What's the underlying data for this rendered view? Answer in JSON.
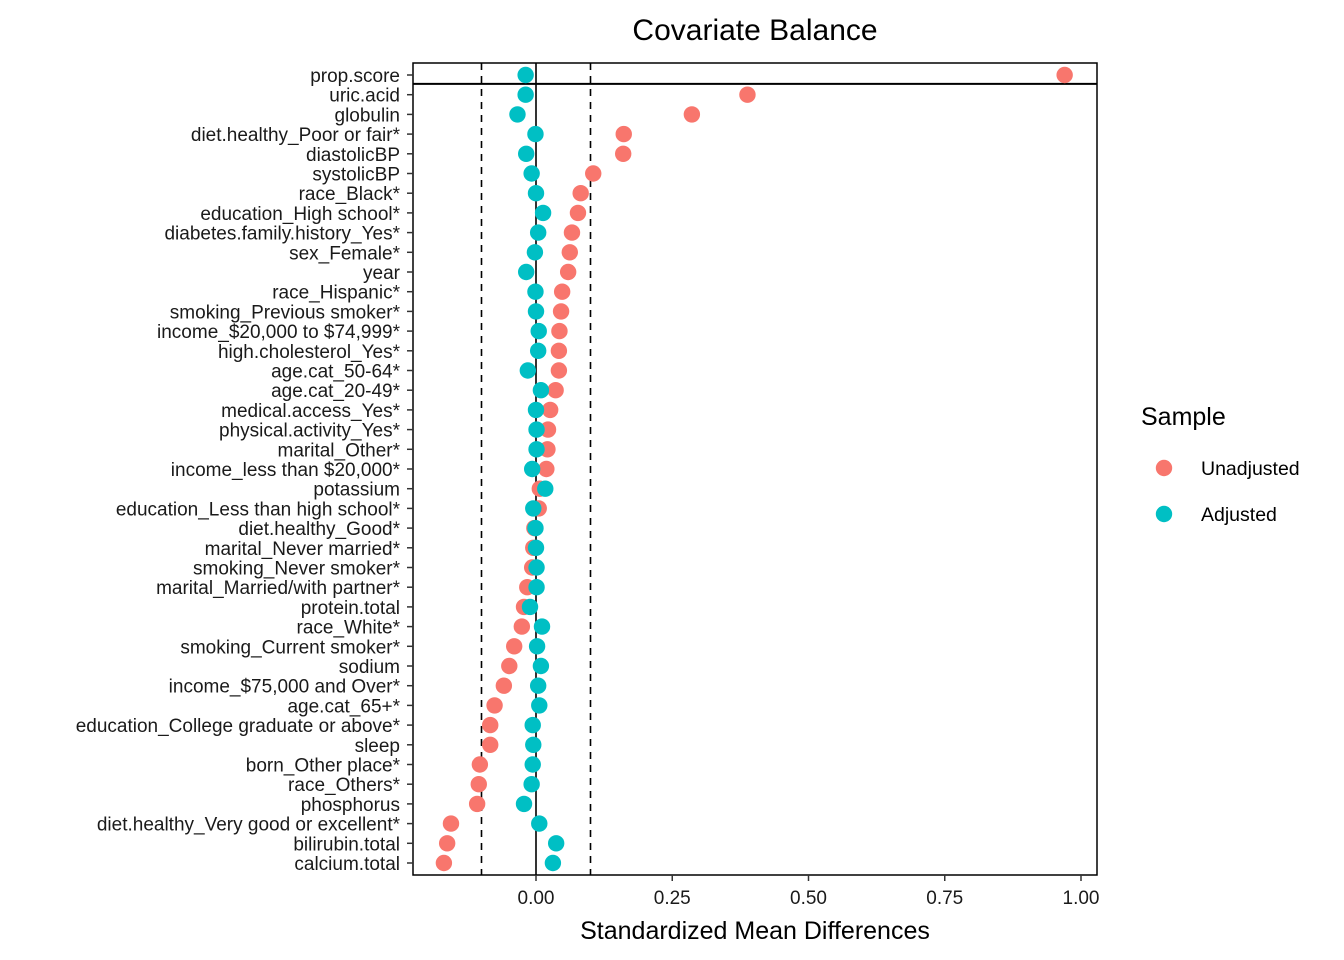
{
  "chart_data": {
    "type": "scatter",
    "title": "Covariate Balance",
    "xlabel": "Standardized Mean Differences",
    "ylabel": "",
    "xlim": [
      -0.225,
      1.025
    ],
    "xticks": [
      0.0,
      0.25,
      0.5,
      0.75,
      1.0
    ],
    "xtick_labels": [
      "0.00",
      "0.25",
      "0.50",
      "0.75",
      "1.00"
    ],
    "threshold_lines": [
      -0.1,
      0.1
    ],
    "zero_line": 0,
    "separator_below": "prop.score",
    "grid": false,
    "legend": {
      "title": "Sample",
      "placement": "right",
      "entries": [
        {
          "name": "Unadjusted",
          "color": "#F8766D"
        },
        {
          "name": "Adjusted",
          "color": "#00BFC4"
        }
      ]
    },
    "categories": [
      "prop.score",
      "uric.acid",
      "globulin",
      "diet.healthy_Poor or fair*",
      "diastolicBP",
      "systolicBP",
      "race_Black*",
      "education_High school*",
      "diabetes.family.history_Yes*",
      "sex_Female*",
      "year",
      "race_Hispanic*",
      "smoking_Previous smoker*",
      "income_$20,000 to $74,999*",
      "high.cholesterol_Yes*",
      "age.cat_50-64*",
      "age.cat_20-49*",
      "medical.access_Yes*",
      "physical.activity_Yes*",
      "marital_Other*",
      "income_less than $20,000*",
      "potassium",
      "education_Less than high school*",
      "diet.healthy_Good*",
      "marital_Never married*",
      "smoking_Never smoker*",
      "marital_Married/with partner*",
      "protein.total",
      "race_White*",
      "smoking_Current smoker*",
      "sodium",
      "income_$75,000 and Over*",
      "age.cat_65+*",
      "education_College graduate or above*",
      "sleep",
      "born_Other place*",
      "race_Others*",
      "phosphorus",
      "diet.healthy_Very good or excellent*",
      "bilirubin.total",
      "calcium.total"
    ],
    "series": [
      {
        "name": "Unadjusted",
        "color": "#F8766D",
        "values": [
          0.97,
          0.388,
          0.286,
          0.161,
          0.16,
          0.105,
          0.082,
          0.077,
          0.066,
          0.062,
          0.059,
          0.048,
          0.046,
          0.043,
          0.042,
          0.042,
          0.036,
          0.026,
          0.022,
          0.021,
          0.019,
          0.007,
          0.005,
          -0.003,
          -0.005,
          -0.007,
          -0.016,
          -0.022,
          -0.026,
          -0.04,
          -0.049,
          -0.059,
          -0.076,
          -0.084,
          -0.084,
          -0.103,
          -0.105,
          -0.108,
          -0.156,
          -0.163,
          -0.169
        ]
      },
      {
        "name": "Adjusted",
        "color": "#00BFC4",
        "values": [
          -0.019,
          -0.019,
          -0.034,
          -0.001,
          -0.018,
          -0.008,
          0.0,
          0.013,
          0.004,
          -0.002,
          -0.018,
          -0.001,
          0.0,
          0.005,
          0.004,
          -0.015,
          0.009,
          0.0,
          0.001,
          0.001,
          -0.007,
          0.017,
          -0.005,
          -0.001,
          0.0,
          0.001,
          0.001,
          -0.011,
          0.011,
          0.002,
          0.009,
          0.004,
          0.006,
          -0.006,
          -0.005,
          -0.006,
          -0.008,
          -0.022,
          0.006,
          0.037,
          0.031
        ]
      }
    ]
  }
}
